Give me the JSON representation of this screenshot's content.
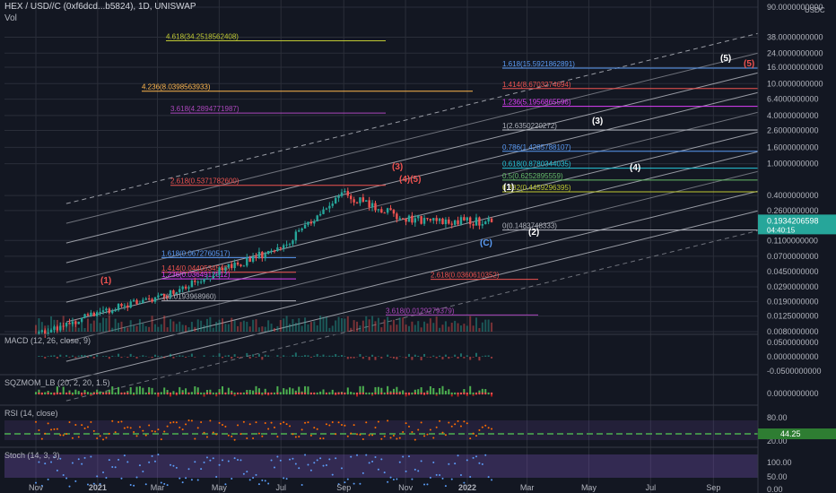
{
  "header": {
    "title": "HEX / USD//C (0xf6dcd...b5824), 1D, UNISWAP",
    "vol_label": "Vol"
  },
  "axis": {
    "currency": "USDC",
    "price_ticks": [
      "90.0000000000",
      "38.0000000000",
      "24.0000000000",
      "16.0000000000",
      "10.0000000000",
      "6.4000000000",
      "4.0000000000",
      "2.6000000000",
      "1.6000000000",
      "1.0000000000",
      "0.4000000000",
      "0.2600000000",
      "0.1100000000",
      "0.0700000000",
      "0.0450000000",
      "0.0290000000",
      "0.0190000000",
      "0.0125000000",
      "0.0080000000"
    ],
    "last_price": "0.1934206598",
    "countdown": "04:40:15",
    "macd_ticks": [
      "0.0500000000",
      "0.0000000000",
      "-0.0500000000"
    ],
    "sqz_ticks": [
      "0.0000000000"
    ],
    "rsi_ticks": [
      "80.00",
      "20.00"
    ],
    "rsi_value": "44.25",
    "stoch_ticks": [
      "100.00",
      "50.00",
      "0.00"
    ],
    "time_ticks": [
      "Nov",
      "2021",
      "Mar",
      "May",
      "Jul",
      "Sep",
      "Nov",
      "2022",
      "Mar",
      "May",
      "Jul",
      "Sep"
    ]
  },
  "indicators": {
    "macd": "MACD (12, 26, close, 9)",
    "sqz": "SQZMOM_LB (20, 2, 20, 1.5)",
    "rsi": "RSI (14, close)",
    "stoch": "Stoch (14, 3, 3)"
  },
  "fib_levels": [
    {
      "text": "4.618(34.2518562408)",
      "color": "#c0ca33"
    },
    {
      "text": "4.236(8.0398563933)",
      "color": "#ffb74d"
    },
    {
      "text": "3.618(4.2894771987)",
      "color": "#ab47bc"
    },
    {
      "text": "2.618(0.5371782600)",
      "color": "#ef5350"
    },
    {
      "text": "1.618(15.5921862891)",
      "color": "#5b9cf6"
    },
    {
      "text": "1.414(8.6703274694)",
      "color": "#ef5350"
    },
    {
      "text": "1.236(5.1956865596)",
      "color": "#e040fb"
    },
    {
      "text": "1(2.6350220272)",
      "color": "#b2b5be"
    },
    {
      "text": "0.786(1.4285788107)",
      "color": "#5b9cf6"
    },
    {
      "text": "0.618(0.8780344035)",
      "color": "#26c6da"
    },
    {
      "text": "0.5(0.6252895559)",
      "color": "#66bb6a"
    },
    {
      "text": "0.382(0.4459296395)",
      "color": "#c0ca33"
    },
    {
      "text": "0(0.1483748333)",
      "color": "#b2b5be"
    },
    {
      "text": "2.618(0.0360610352)",
      "color": "#ef5350"
    },
    {
      "text": "3.618(0.0129279379)",
      "color": "#ab47bc"
    },
    {
      "text": "1.618(0.0672760517)",
      "color": "#5b9cf6"
    },
    {
      "text": "1.414(0.0440534548)",
      "color": "#ef5350"
    },
    {
      "text": "1.236(0.0364912512)",
      "color": "#e040fb"
    },
    {
      "text": "1(0.0193968960)",
      "color": "#b2b5be"
    }
  ],
  "waves": [
    {
      "text": "(1)",
      "color": "#ef5350"
    },
    {
      "text": "(3)",
      "color": "#ef5350"
    },
    {
      "text": "(4)(5)",
      "color": "#ef5350"
    },
    {
      "text": "(5)",
      "color": "#ef5350"
    },
    {
      "text": "(1)",
      "color": "#ffffff"
    },
    {
      "text": "(2)",
      "color": "#ffffff"
    },
    {
      "text": "(3)",
      "color": "#ffffff"
    },
    {
      "text": "(4)",
      "color": "#ffffff"
    },
    {
      "text": "(5)",
      "color": "#ffffff"
    },
    {
      "text": "(C)",
      "color": "#5b9cf6"
    }
  ],
  "chart_data": {
    "type": "candlestick",
    "symbol": "HEX / USD//C",
    "scale": "log",
    "x": [
      "2020-11",
      "2021-01",
      "2021-03",
      "2021-05",
      "2021-07",
      "2021-09",
      "2021-11",
      "2022-01"
    ],
    "close": [
      0.0075,
      0.014,
      0.022,
      0.045,
      0.09,
      0.42,
      0.2,
      0.19
    ],
    "last": 0.1934206598,
    "rsi_last": 44.25
  },
  "colors": {
    "up": "#26a69a",
    "down": "#ef5350",
    "bg": "#131722",
    "grid": "#2a2e39",
    "axis_text": "#b2b5be",
    "price_tag": "#26a69a"
  }
}
